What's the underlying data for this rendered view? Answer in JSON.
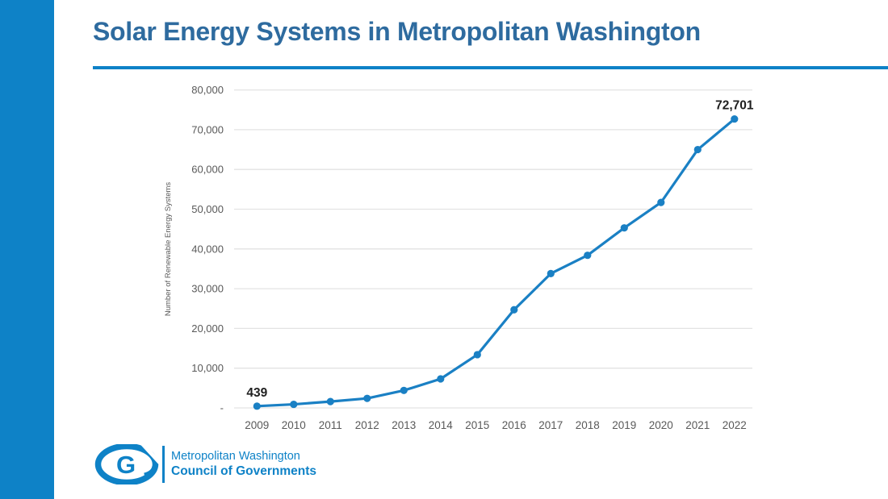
{
  "title": "Solar Energy Systems in Metropolitan Washington",
  "colors": {
    "accent": "#0e82c7",
    "title_text": "#2e6b9f",
    "line": "#1a80c4",
    "grid": "#e3e3e3",
    "tick_text": "#595959",
    "data_label_text": "#1f1f1f"
  },
  "chart_data": {
    "type": "line",
    "title": "Solar Energy Systems in Metropolitan Washington",
    "categories": [
      "2009",
      "2010",
      "2011",
      "2012",
      "2013",
      "2014",
      "2015",
      "2016",
      "2017",
      "2018",
      "2019",
      "2020",
      "2021",
      "2022"
    ],
    "series": [
      {
        "name": "Number of Renewable Energy Systems",
        "values": [
          439,
          900,
          1600,
          2400,
          4400,
          7300,
          13400,
          24700,
          33800,
          38400,
          45300,
          51700,
          65000,
          72701
        ]
      }
    ],
    "xlabel": "",
    "ylabel": "Number of Renewable Energy Systems",
    "ylim": [
      0,
      80000
    ],
    "ytick_step": 10000,
    "ytick_zero_label": "-",
    "grid": "horizontal",
    "legend": "none",
    "markers": true,
    "data_labels": [
      {
        "index": 0,
        "text": "439"
      },
      {
        "index": 13,
        "text": "72,701"
      }
    ]
  },
  "logo": {
    "monogram": "G",
    "line1": "Metropolitan Washington",
    "line2": "Council of Governments"
  }
}
